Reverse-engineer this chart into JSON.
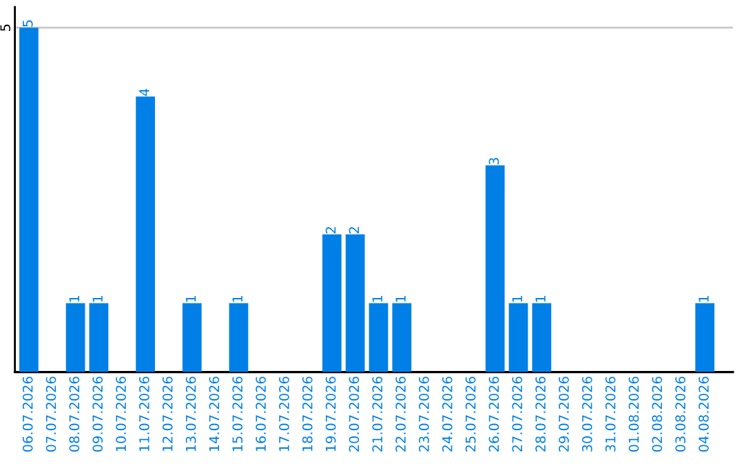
{
  "chart_data": {
    "type": "bar",
    "categories": [
      "06.07.2026",
      "07.07.2026",
      "08.07.2026",
      "09.07.2026",
      "10.07.2026",
      "11.07.2026",
      "12.07.2026",
      "13.07.2026",
      "14.07.2026",
      "15.07.2026",
      "16.07.2026",
      "17.07.2026",
      "18.07.2026",
      "19.07.2026",
      "20.07.2026",
      "21.07.2026",
      "22.07.2026",
      "23.07.2026",
      "24.07.2026",
      "25.07.2026",
      "26.07.2026",
      "27.07.2026",
      "28.07.2026",
      "29.07.2026",
      "30.07.2026",
      "31.07.2026",
      "01.08.2026",
      "02.08.2026",
      "03.08.2026",
      "04.08.2026"
    ],
    "values": [
      5,
      0,
      1,
      1,
      0,
      4,
      0,
      1,
      0,
      1,
      0,
      0,
      0,
      2,
      2,
      1,
      1,
      0,
      0,
      0,
      3,
      1,
      1,
      0,
      0,
      0,
      0,
      0,
      0,
      1
    ],
    "value_labels": [
      "5",
      null,
      "1",
      "1",
      null,
      "4",
      null,
      "1",
      null,
      "1",
      null,
      null,
      null,
      "2",
      "2",
      "1",
      "1",
      null,
      null,
      null,
      "3",
      "1",
      "1",
      null,
      null,
      null,
      null,
      null,
      null,
      "1"
    ],
    "color": "#0080e6",
    "ylim": [
      0,
      5.3
    ],
    "yticks": [
      5
    ],
    "grid": "y"
  }
}
